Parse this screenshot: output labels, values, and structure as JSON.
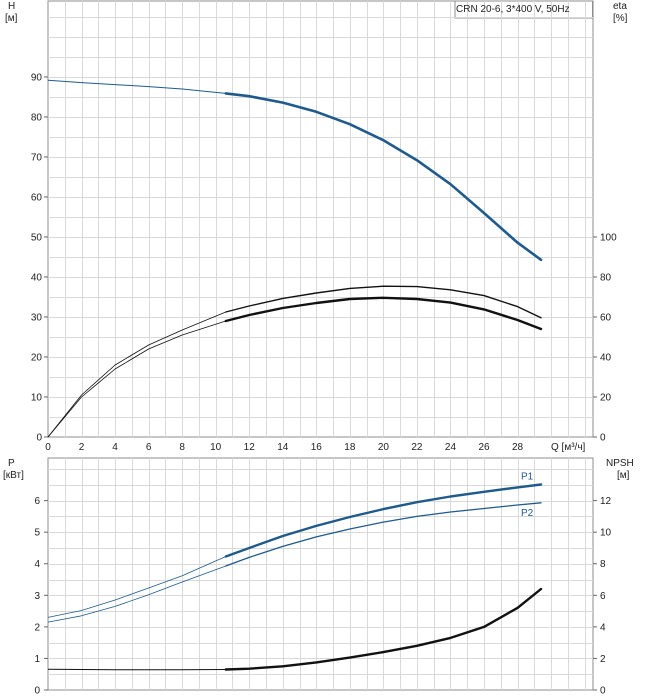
{
  "chart_data": [
    {
      "type": "line",
      "model_label": "CRN 20-6, 3*400 V, 50Hz",
      "ylabel_left": "H",
      "ylabel_left_unit": "[м]",
      "ylabel_right": "eta",
      "ylabel_right_unit": "[%]",
      "xlabel": "Q [м³/ч]",
      "x_ticks": [
        "0",
        "2",
        "4",
        "6",
        "8",
        "10",
        "12",
        "14",
        "16",
        "18",
        "20",
        "22",
        "24",
        "26",
        "28"
      ],
      "y_left_ticks": [
        "0",
        "10",
        "20",
        "30",
        "40",
        "50",
        "60",
        "70",
        "80",
        "90"
      ],
      "y_right_ticks": [
        "0",
        "20",
        "40",
        "60",
        "80",
        "100"
      ],
      "xlim": [
        0,
        32.5
      ],
      "ylim_left": [
        0,
        109
      ],
      "ylim_right": [
        0,
        218
      ],
      "grid": true,
      "head_curve": {
        "axis": "left",
        "color": "#1f5a8c",
        "extrapolated": [
          [
            0,
            89.2
          ],
          [
            2,
            88.6
          ],
          [
            4,
            88.1
          ],
          [
            6,
            87.6
          ],
          [
            8,
            87.0
          ],
          [
            10.6,
            85.9
          ]
        ],
        "operating": [
          [
            10.6,
            85.9
          ],
          [
            12,
            85.2
          ],
          [
            14,
            83.6
          ],
          [
            16,
            81.3
          ],
          [
            18,
            78.2
          ],
          [
            20,
            74.2
          ],
          [
            22,
            69.2
          ],
          [
            24,
            63.2
          ],
          [
            26,
            56.0
          ],
          [
            28,
            48.6
          ],
          [
            29.4,
            44.3
          ]
        ]
      },
      "eta_curves": [
        {
          "axis": "right",
          "color": "#111111",
          "extrapolated": [
            [
              0,
              0
            ],
            [
              2,
              20
            ],
            [
              4,
              34
            ],
            [
              6,
              44
            ],
            [
              8,
              51
            ],
            [
              10.6,
              58
            ]
          ],
          "operating": [
            [
              10.6,
              58
            ],
            [
              12,
              61
            ],
            [
              14,
              64.5
            ],
            [
              16,
              67
            ],
            [
              18,
              69
            ],
            [
              20,
              69.6
            ],
            [
              22,
              69
            ],
            [
              24,
              67.2
            ],
            [
              26,
              63.8
            ],
            [
              28,
              58.5
            ],
            [
              29.4,
              54
            ]
          ]
        },
        {
          "axis": "right",
          "color": "#111111",
          "extrapolated": [
            [
              0,
              0
            ],
            [
              2,
              21
            ],
            [
              4,
              36
            ],
            [
              6,
              46
            ],
            [
              8,
              53.5
            ],
            [
              10.6,
              62.5
            ]
          ],
          "operating": [
            [
              10.6,
              62.5
            ],
            [
              12,
              65.5
            ],
            [
              14,
              69.3
            ],
            [
              16,
              72
            ],
            [
              18,
              74.3
            ],
            [
              20,
              75.4
            ],
            [
              22,
              75.2
            ],
            [
              24,
              73.6
            ],
            [
              26,
              70.7
            ],
            [
              28,
              65.2
            ],
            [
              29.4,
              59.6
            ]
          ]
        }
      ]
    },
    {
      "type": "line",
      "ylabel_left": "P",
      "ylabel_left_unit": "[кВт]",
      "ylabel_right": "NPSH",
      "ylabel_right_unit": "[м]",
      "y_left_ticks": [
        "0",
        "1",
        "2",
        "3",
        "4",
        "5",
        "6"
      ],
      "y_right_ticks": [
        "0",
        "2",
        "4",
        "6",
        "8",
        "10",
        "12"
      ],
      "xlim": [
        0,
        32.5
      ],
      "ylim_left": [
        0,
        7.35
      ],
      "ylim_right": [
        0,
        14.7
      ],
      "grid": true,
      "power_curves": [
        {
          "name": "P1",
          "axis": "left",
          "color": "#1f5a8c",
          "extrapolated": [
            [
              0,
              2.3
            ],
            [
              2,
              2.52
            ],
            [
              4,
              2.85
            ],
            [
              6,
              3.23
            ],
            [
              8,
              3.62
            ],
            [
              10.6,
              4.23
            ]
          ],
          "operating": [
            [
              10.6,
              4.23
            ],
            [
              12,
              4.5
            ],
            [
              14,
              4.88
            ],
            [
              16,
              5.2
            ],
            [
              18,
              5.48
            ],
            [
              20,
              5.73
            ],
            [
              22,
              5.95
            ],
            [
              24,
              6.13
            ],
            [
              26,
              6.28
            ],
            [
              28,
              6.42
            ],
            [
              29.4,
              6.51
            ]
          ]
        },
        {
          "name": "P2",
          "axis": "left",
          "color": "#1f5a8c",
          "extrapolated": [
            [
              0,
              2.15
            ],
            [
              2,
              2.35
            ],
            [
              4,
              2.65
            ],
            [
              6,
              3.02
            ],
            [
              8,
              3.42
            ],
            [
              10.6,
              3.93
            ]
          ],
          "operating": [
            [
              10.6,
              3.93
            ],
            [
              12,
              4.2
            ],
            [
              14,
              4.55
            ],
            [
              16,
              4.85
            ],
            [
              18,
              5.1
            ],
            [
              20,
              5.32
            ],
            [
              22,
              5.5
            ],
            [
              24,
              5.64
            ],
            [
              26,
              5.75
            ],
            [
              28,
              5.86
            ],
            [
              29.4,
              5.93
            ]
          ]
        }
      ],
      "npsh_curve": {
        "axis": "right",
        "color": "#111111",
        "extrapolated": [
          [
            0,
            1.32
          ],
          [
            4,
            1.28
          ],
          [
            8,
            1.28
          ],
          [
            10.6,
            1.3
          ]
        ],
        "operating": [
          [
            10.6,
            1.3
          ],
          [
            12,
            1.35
          ],
          [
            14,
            1.5
          ],
          [
            16,
            1.75
          ],
          [
            18,
            2.05
          ],
          [
            20,
            2.4
          ],
          [
            22,
            2.8
          ],
          [
            24,
            3.3
          ],
          [
            26,
            4.0
          ],
          [
            28,
            5.2
          ],
          [
            29.4,
            6.4
          ]
        ]
      }
    }
  ]
}
